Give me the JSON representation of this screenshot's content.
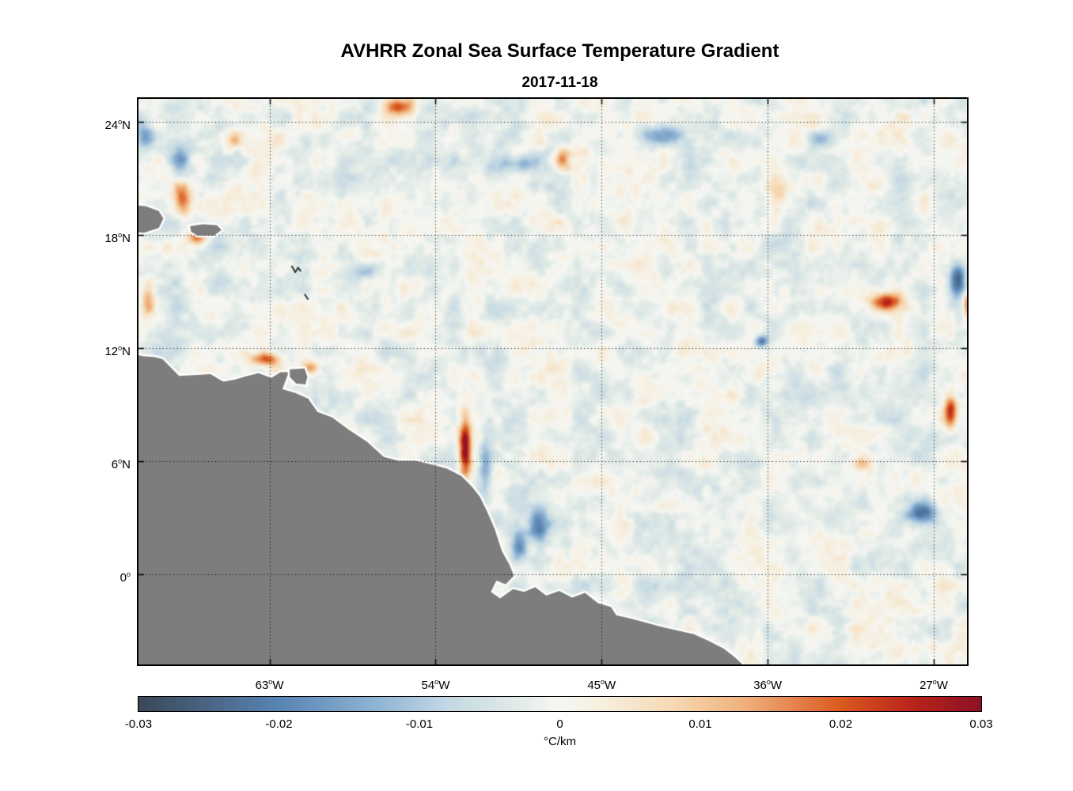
{
  "title": "AVHRR Zonal Sea Surface Temperature Gradient",
  "subtitle": "2017-11-18",
  "colorbar": {
    "label": "°C/km",
    "ticks": [
      -0.03,
      -0.02,
      -0.01,
      0,
      0.01,
      0.02,
      0.03
    ],
    "tick_labels": [
      "-0.03",
      "-0.02",
      "-0.01",
      "0",
      "0.01",
      "0.02",
      "0.03"
    ],
    "stops": [
      {
        "v": -0.03,
        "c": "#3b4757"
      },
      {
        "v": -0.02,
        "c": "#5884b3"
      },
      {
        "v": -0.013,
        "c": "#8fb4d4"
      },
      {
        "v": -0.008,
        "c": "#c3d8e4"
      },
      {
        "v": -0.003,
        "c": "#e2ebe7"
      },
      {
        "v": 0,
        "c": "#f6f7f3"
      },
      {
        "v": 0.003,
        "c": "#f7efdf"
      },
      {
        "v": 0.008,
        "c": "#f6d9b4"
      },
      {
        "v": 0.013,
        "c": "#f0b27c"
      },
      {
        "v": 0.02,
        "c": "#da5a20"
      },
      {
        "v": 0.025,
        "c": "#b92419"
      },
      {
        "v": 0.03,
        "c": "#8c1127"
      }
    ]
  },
  "chart_data": {
    "type": "heatmap",
    "title": "AVHRR Zonal Sea Surface Temperature Gradient",
    "subtitle": "2017-11-18",
    "units": "°C/km",
    "value_range": [
      -0.03,
      0.03
    ],
    "grid": "dotted",
    "extent": {
      "lon": [
        -70.1,
        -25.2
      ],
      "lat": [
        -4.8,
        25.2
      ]
    },
    "xticks": [
      {
        "lon": -63,
        "label": "63°W"
      },
      {
        "lon": -54,
        "label": "54°W"
      },
      {
        "lon": -45,
        "label": "45°W"
      },
      {
        "lon": -36,
        "label": "36°W"
      },
      {
        "lon": -27,
        "label": "27°W"
      }
    ],
    "yticks": [
      {
        "lat": 24,
        "label": "24°N"
      },
      {
        "lat": 18,
        "label": "18°N"
      },
      {
        "lat": 12,
        "label": "12°N"
      },
      {
        "lat": 6,
        "label": "6°N"
      },
      {
        "lat": 0,
        "label": "0°"
      }
    ],
    "noise": {
      "amp1": 0.0046,
      "scale1": 27,
      "amp2": 0.0026,
      "scale2": 11,
      "amp3": 0.0013,
      "scale3": 5,
      "bias": -0.0012
    },
    "features": [
      {
        "name": "red-streak-offshore-guiana",
        "lon": -52.4,
        "lat": 6.6,
        "amp": 0.032,
        "rx": 0.32,
        "ry": 1.6
      },
      {
        "name": "blue-streak-offshore-guiana",
        "lon": -51.3,
        "lat": 5.7,
        "amp": -0.016,
        "rx": 0.38,
        "ry": 1.4
      },
      {
        "name": "blue-eddy-off-amapa",
        "lon": -48.4,
        "lat": 2.5,
        "amp": -0.024,
        "rx": 0.55,
        "ry": 0.85
      },
      {
        "name": "orange-mona-passage-north",
        "lon": -67.7,
        "lat": 19.9,
        "amp": 0.022,
        "rx": 0.45,
        "ry": 0.85
      },
      {
        "name": "orange-south-of-puerto-rico",
        "lon": -66.9,
        "lat": 17.9,
        "amp": 0.02,
        "rx": 0.55,
        "ry": 0.5
      },
      {
        "name": "orange-top-center-left",
        "lon": -55.9,
        "lat": 24.8,
        "amp": 0.022,
        "rx": 0.85,
        "ry": 0.5
      },
      {
        "name": "navy-right-edge-upper",
        "lon": -25.7,
        "lat": 15.5,
        "amp": -0.028,
        "rx": 0.5,
        "ry": 1.0
      },
      {
        "name": "red-right-edge",
        "lon": -25.1,
        "lat": 14.2,
        "amp": 0.03,
        "rx": 0.28,
        "ry": 0.7
      },
      {
        "name": "orange-blob-right",
        "lon": -29.6,
        "lat": 14.4,
        "amp": 0.026,
        "rx": 0.75,
        "ry": 0.45
      },
      {
        "name": "navy-spot-center-right",
        "lon": -36.3,
        "lat": 12.3,
        "amp": -0.022,
        "rx": 0.38,
        "ry": 0.3
      },
      {
        "name": "orange-venezuela-coast",
        "lon": -63.2,
        "lat": 11.35,
        "amp": 0.021,
        "rx": 0.75,
        "ry": 0.35
      },
      {
        "name": "orange-near-trinidad",
        "lon": -60.8,
        "lat": 10.9,
        "amp": 0.016,
        "rx": 0.45,
        "ry": 0.3
      },
      {
        "name": "blue-off-amazon-mouth",
        "lon": -49.5,
        "lat": 1.4,
        "amp": -0.02,
        "rx": 0.45,
        "ry": 0.8
      },
      {
        "name": "blue-lower-right",
        "lon": -27.6,
        "lat": 3.2,
        "amp": -0.024,
        "rx": 0.8,
        "ry": 0.6
      },
      {
        "name": "orange-right-edge-mid",
        "lon": -26.1,
        "lat": 8.6,
        "amp": 0.024,
        "rx": 0.35,
        "ry": 0.85
      },
      {
        "name": "blue-top-left",
        "lon": -67.8,
        "lat": 21.9,
        "amp": -0.014,
        "rx": 0.55,
        "ry": 0.95
      },
      {
        "name": "blue-streak-top-center",
        "lon": -49.5,
        "lat": 21.8,
        "amp": -0.013,
        "rx": 1.1,
        "ry": 0.45
      },
      {
        "name": "orange-top-center",
        "lon": -47.1,
        "lat": 22.0,
        "amp": 0.016,
        "rx": 0.38,
        "ry": 0.6
      },
      {
        "name": "blue-top-right-center",
        "lon": -41.6,
        "lat": 23.3,
        "amp": -0.015,
        "rx": 0.95,
        "ry": 0.5
      },
      {
        "name": "blue-top-right",
        "lon": -33.2,
        "lat": 23.1,
        "amp": -0.014,
        "rx": 0.6,
        "ry": 0.45
      },
      {
        "name": "faint-blue-mid-left",
        "lon": -57.8,
        "lat": 16.1,
        "amp": -0.011,
        "rx": 0.9,
        "ry": 0.5
      },
      {
        "name": "faint-orange-lower-right",
        "lon": -30.9,
        "lat": 5.8,
        "amp": 0.012,
        "rx": 0.6,
        "ry": 0.5
      },
      {
        "name": "faint-orange-mid-right",
        "lon": -35.5,
        "lat": 20.0,
        "amp": 0.012,
        "rx": 0.5,
        "ry": 0.8
      },
      {
        "name": "faint-orange-upper-left",
        "lon": -65.0,
        "lat": 23.0,
        "amp": 0.012,
        "rx": 0.5,
        "ry": 0.5
      },
      {
        "name": "orange-left-edge",
        "lon": -69.6,
        "lat": 14.5,
        "amp": 0.013,
        "rx": 0.35,
        "ry": 1.0
      },
      {
        "name": "blue-top-left-corner",
        "lon": -69.8,
        "lat": 23.3,
        "amp": -0.013,
        "rx": 0.5,
        "ry": 0.8
      }
    ],
    "land": {
      "color": "#7d7d7d",
      "coast_halo": "#ffffff",
      "polygons": {
        "south_america": [
          [
            -70.6,
            11.75
          ],
          [
            -69.9,
            11.55
          ],
          [
            -69.2,
            11.5
          ],
          [
            -68.8,
            11.4
          ],
          [
            -68.3,
            10.9
          ],
          [
            -67.9,
            10.5
          ],
          [
            -67.1,
            10.55
          ],
          [
            -66.2,
            10.6
          ],
          [
            -65.5,
            10.2
          ],
          [
            -64.9,
            10.3
          ],
          [
            -64.2,
            10.5
          ],
          [
            -63.6,
            10.65
          ],
          [
            -62.9,
            10.4
          ],
          [
            -62.4,
            10.7
          ],
          [
            -61.95,
            10.7
          ],
          [
            -62.15,
            10.2
          ],
          [
            -62.3,
            9.8
          ],
          [
            -61.6,
            9.6
          ],
          [
            -60.9,
            9.3
          ],
          [
            -60.4,
            8.6
          ],
          [
            -59.6,
            8.3
          ],
          [
            -58.7,
            7.65
          ],
          [
            -57.7,
            7.0
          ],
          [
            -56.8,
            6.2
          ],
          [
            -56.0,
            6.0
          ],
          [
            -55.1,
            6.0
          ],
          [
            -54.2,
            5.8
          ],
          [
            -53.4,
            5.6
          ],
          [
            -52.6,
            5.2
          ],
          [
            -52.0,
            4.6
          ],
          [
            -51.6,
            4.1
          ],
          [
            -51.2,
            3.3
          ],
          [
            -50.8,
            2.4
          ],
          [
            -50.4,
            1.2
          ],
          [
            -50.0,
            0.5
          ],
          [
            -49.75,
            -0.1
          ],
          [
            -50.2,
            -0.55
          ],
          [
            -50.7,
            -0.35
          ],
          [
            -51.0,
            -0.95
          ],
          [
            -50.5,
            -1.3
          ],
          [
            -49.8,
            -0.8
          ],
          [
            -49.2,
            -0.95
          ],
          [
            -48.6,
            -0.7
          ],
          [
            -48.0,
            -1.15
          ],
          [
            -47.3,
            -0.9
          ],
          [
            -46.6,
            -1.25
          ],
          [
            -45.9,
            -1.0
          ],
          [
            -45.2,
            -1.55
          ],
          [
            -44.5,
            -1.75
          ],
          [
            -44.2,
            -2.2
          ],
          [
            -43.5,
            -2.35
          ],
          [
            -42.7,
            -2.55
          ],
          [
            -41.8,
            -2.8
          ],
          [
            -40.9,
            -3.0
          ],
          [
            -40.0,
            -3.2
          ],
          [
            -39.2,
            -3.55
          ],
          [
            -38.4,
            -3.95
          ],
          [
            -37.8,
            -4.4
          ],
          [
            -37.2,
            -4.95
          ],
          [
            -36.9,
            -5.4
          ],
          [
            -70.6,
            -5.4
          ]
        ],
        "hispaniola": [
          [
            -70.5,
            19.6
          ],
          [
            -69.7,
            19.5
          ],
          [
            -69.0,
            19.25
          ],
          [
            -68.75,
            18.85
          ],
          [
            -69.0,
            18.35
          ],
          [
            -69.8,
            18.1
          ],
          [
            -70.5,
            18.15
          ]
        ],
        "puerto_rico": [
          [
            -67.3,
            18.45
          ],
          [
            -66.6,
            18.55
          ],
          [
            -65.85,
            18.5
          ],
          [
            -65.6,
            18.25
          ],
          [
            -66.0,
            17.95
          ],
          [
            -66.9,
            17.95
          ],
          [
            -67.25,
            18.15
          ]
        ],
        "trinidad": [
          [
            -61.9,
            10.85
          ],
          [
            -61.1,
            10.9
          ],
          [
            -60.95,
            10.45
          ],
          [
            -61.05,
            10.05
          ],
          [
            -61.55,
            10.1
          ],
          [
            -61.9,
            10.45
          ]
        ]
      },
      "islets": {
        "guadeloupe": [
          [
            -61.8,
            16.35
          ],
          [
            -61.6,
            16.0
          ],
          [
            -61.45,
            16.25
          ],
          [
            -61.3,
            16.05
          ]
        ],
        "martinique": [
          [
            -61.1,
            14.85
          ],
          [
            -60.9,
            14.55
          ]
        ]
      }
    }
  }
}
